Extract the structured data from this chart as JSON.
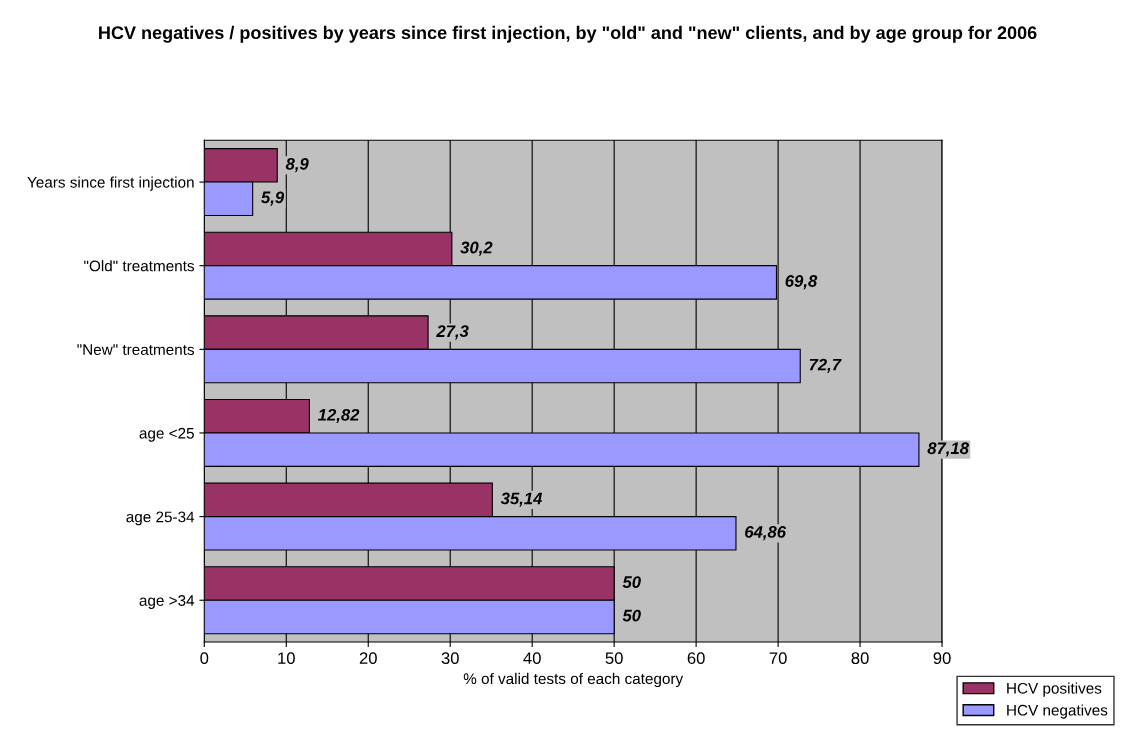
{
  "chart_data": {
    "type": "bar",
    "orientation": "horizontal",
    "title": "HCV negatives / positives by years since first injection, by \"old\" and \"new\" clients, and by age group for 2006",
    "xlabel": "% of valid tests of each category",
    "categories": [
      "Years since first injection",
      "\"Old\" treatments",
      "\"New\" treatments",
      "age <25",
      "age 25-34",
      "age >34"
    ],
    "series": [
      {
        "name": "HCV positives",
        "color": "#993366",
        "values": [
          8.9,
          30.2,
          27.3,
          12.82,
          35.14,
          50
        ],
        "value_labels": [
          "8,9",
          "30,2",
          "27,3",
          "12,82",
          "35,14",
          "50"
        ]
      },
      {
        "name": "HCV negatives",
        "color": "#9999ff",
        "values": [
          5.9,
          69.8,
          72.7,
          87.18,
          64.86,
          50
        ],
        "value_labels": [
          "5,9",
          "69,8",
          "72,7",
          "87,18",
          "64,86",
          "50"
        ]
      }
    ],
    "xlim": [
      0,
      90
    ],
    "xticks": [
      0,
      10,
      20,
      30,
      40,
      50,
      60,
      70,
      80,
      90
    ],
    "grid": "x",
    "legend": "bottom right"
  }
}
